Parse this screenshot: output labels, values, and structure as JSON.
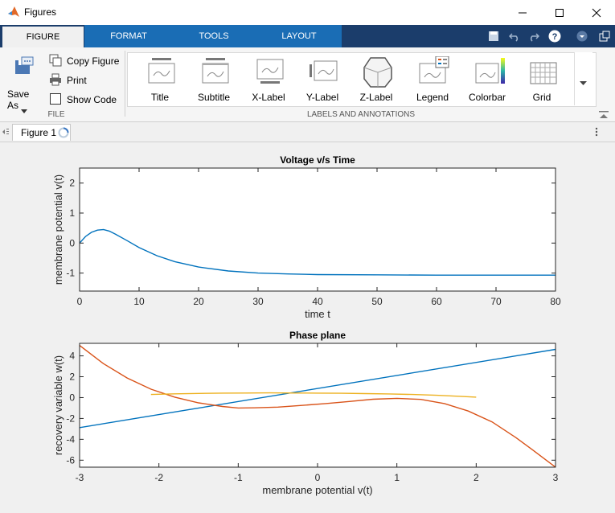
{
  "window": {
    "title": "Figures"
  },
  "tabs": [
    {
      "label": "FIGURE",
      "active": true
    },
    {
      "label": "FORMAT",
      "active": false
    },
    {
      "label": "TOOLS",
      "active": false
    },
    {
      "label": "LAYOUT",
      "active": false
    }
  ],
  "file_group": {
    "save_as": "Save As",
    "copy_figure": "Copy Figure",
    "print": "Print",
    "show_code": "Show Code",
    "label": "FILE"
  },
  "annotations_group": {
    "label": "LABELS AND ANNOTATIONS",
    "items": [
      "Title",
      "Subtitle",
      "X-Label",
      "Y-Label",
      "Z-Label",
      "Legend",
      "Colorbar",
      "Grid"
    ]
  },
  "document": {
    "tab_label": "Figure 1"
  },
  "colors": {
    "accent": "#1a6db5",
    "tabbar": "#1b3d6b",
    "series_blue": "#0072bd",
    "series_orange": "#d95319",
    "series_yellow": "#edb120"
  },
  "chart_data": [
    {
      "type": "line",
      "title": "Voltage v/s Time",
      "xlabel": "time t",
      "ylabel": "membrane potential v(t)",
      "xlim": [
        0,
        80
      ],
      "ylim": [
        -1.6,
        2.5
      ],
      "xticks": [
        "0",
        "10",
        "20",
        "30",
        "40",
        "50",
        "60",
        "70",
        "80"
      ],
      "yticks": [
        "2",
        "1",
        "0",
        "-1"
      ],
      "series": [
        {
          "x": [
            0,
            1,
            2,
            3,
            4,
            5,
            6,
            8,
            10,
            13,
            16,
            20,
            25,
            30,
            35,
            40,
            50,
            60,
            70,
            80
          ],
          "y": [
            0.0,
            0.22,
            0.36,
            0.43,
            0.45,
            0.4,
            0.3,
            0.08,
            -0.15,
            -0.42,
            -0.62,
            -0.8,
            -0.93,
            -1.0,
            -1.03,
            -1.05,
            -1.06,
            -1.07,
            -1.07,
            -1.07
          ]
        }
      ]
    },
    {
      "type": "line",
      "title": "Phase plane",
      "xlabel": "membrane potential v(t)",
      "ylabel": "recovery variable w(t)",
      "xlim": [
        -3,
        3
      ],
      "ylim": [
        -6.67,
        5.2
      ],
      "xticks": [
        "-3",
        "-2",
        "-1",
        "0",
        "1",
        "2",
        "3"
      ],
      "yticks": [
        "4",
        "2",
        "0",
        "-2",
        "-4",
        "-6"
      ],
      "series": [
        {
          "x": [
            -3,
            3
          ],
          "y": [
            -2.875,
            4.625
          ]
        },
        {
          "x": [
            -3,
            -2.7,
            -2.4,
            -2.1,
            -1.8,
            -1.5,
            -1.2,
            -1.0,
            -0.8,
            -0.5,
            -0.2,
            0.1,
            0.4,
            0.7,
            1.0,
            1.3,
            1.6,
            1.9,
            2.2,
            2.5,
            2.7,
            3.0
          ],
          "y": [
            5.0,
            3.26,
            1.88,
            0.81,
            0.04,
            -0.5,
            -0.85,
            -1.0,
            -0.98,
            -0.91,
            -0.75,
            -0.57,
            -0.37,
            -0.16,
            -0.07,
            -0.17,
            -0.57,
            -1.29,
            -2.33,
            -3.83,
            -4.95,
            -6.67
          ]
        },
        {
          "x": [
            -2.1,
            -1.8,
            -1.5,
            -1.2,
            -0.9,
            -0.6,
            -0.3,
            0.0,
            0.3,
            0.6,
            0.9,
            1.2,
            1.5,
            1.8,
            2.0
          ],
          "y": [
            0.3,
            0.36,
            0.4,
            0.43,
            0.44,
            0.45,
            0.44,
            0.43,
            0.41,
            0.38,
            0.35,
            0.3,
            0.22,
            0.12,
            0.04
          ]
        }
      ]
    }
  ]
}
